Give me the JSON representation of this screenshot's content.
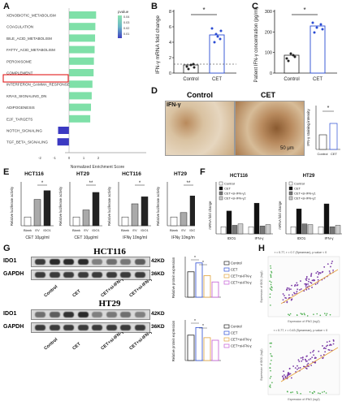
{
  "panels": {
    "A": {
      "label": "A",
      "legend_title": "pvalue",
      "legend_ticks": [
        "0.04",
        "0.03",
        "0.02",
        "0.01"
      ],
      "xlabel": "Normalized Enrichment Score",
      "xticks": [
        "-2",
        "-1",
        "0",
        "1",
        "2"
      ],
      "highlight": "INTERFERON_GAMMA_RESPONSE"
    },
    "B": {
      "label": "B",
      "ylabel": "IFN-γ mRNA fold change",
      "sig": "*",
      "categories": [
        "Control",
        "CET"
      ],
      "yticks": [
        "0",
        "2",
        "4",
        "6",
        "8"
      ]
    },
    "C": {
      "label": "C",
      "ylabel": "Patient IFN-γ concentration (pg/ml)",
      "sig": "*",
      "categories": [
        "Control",
        "CET"
      ],
      "yticks": [
        "0",
        "100",
        "200",
        "300"
      ]
    },
    "D": {
      "label": "D",
      "title_control": "Control",
      "title_cet": "CET",
      "ifn_label": "IFN-γ",
      "scale": "50 μm",
      "ylabel": "IFN-γ staining intensity",
      "sig": "*",
      "categories": [
        "Control",
        "CET"
      ]
    },
    "E": {
      "label": "E",
      "groups": [
        {
          "title": "HCT116",
          "xlabel": "CET 10μg/ml",
          "ylabel": "Relative luciferase activity",
          "cats": [
            "Blank",
            "EV",
            "IDO1"
          ],
          "sig": "*"
        },
        {
          "title": "HT29",
          "xlabel": "CET 10μg/ml",
          "ylabel": "Relative luciferase activity",
          "cats": [
            "Blank",
            "EV",
            "IDO1"
          ],
          "sig": "**"
        },
        {
          "title": "HCT116",
          "xlabel": "IFNγ 10ng/ml",
          "ylabel": "Relative luciferase activity",
          "cats": [
            "Blank",
            "EV",
            "IDO1"
          ],
          "sig": "*"
        },
        {
          "title": "HT29",
          "xlabel": "IFNγ 10ng/ml",
          "ylabel": "Relative luciferase activity",
          "cats": [
            "Blank",
            "EV",
            "IDO1"
          ],
          "sig": "**"
        }
      ]
    },
    "F": {
      "label": "F",
      "ylabel": "mRNA fold change",
      "legend": [
        "Control",
        "CET",
        "CET+si-IFN-γ1",
        "CET+si-IFN-γ2"
      ],
      "subtitles": [
        "HCT116",
        "HT29"
      ],
      "xcats": [
        "IDO1",
        "IFN-γ"
      ]
    },
    "G": {
      "label": "G",
      "blot1_title": "HCT116",
      "blot2_title": "HT29",
      "row1": "IDO1",
      "row2": "GAPDH",
      "kda1": "42KD",
      "kda2": "36KD",
      "lanes": [
        "Control",
        "CET",
        "CET+si-IFN-γ1",
        "CET+si-IFN-γ2"
      ],
      "bar_ylabel": "Relative protein expression",
      "legend": [
        "Control",
        "CET",
        "CET+si-IFN-γ1",
        "CET+si-IFN-γ2"
      ]
    },
    "H": {
      "label": "H",
      "stat1": "r = 0.77, r = 0.7 (Spearman), p.value < 0",
      "stat2": "r = 0.77, r = 0.43 (Spearman), p.value < 0",
      "xlabel": "Expression of IFNG (log2)",
      "ylabel": "Expression of IDO1 (log2)"
    }
  },
  "chart_data": [
    {
      "type": "bar",
      "title": "",
      "categories": [
        "XENOBIOTIC_METABOLISM",
        "COAGULATION",
        "BILE_ACID_METABOLISM",
        "FATTY_ACID_METABOLISM",
        "PEROXISOME",
        "COMPLEMENT",
        "INTERFERON_GAMMA_RESPONSE",
        "KRAS_SIGNALING_DN",
        "ADIPOGENESIS",
        "E2F_TARGETS",
        "NOTCH_SIGNALING",
        "TGF_BETA_SIGNALING"
      ],
      "values": [
        1.85,
        1.8,
        1.78,
        1.75,
        1.7,
        1.68,
        1.6,
        1.55,
        1.5,
        1.45,
        -0.75,
        -0.8
      ],
      "xlabel": "Normalized Enrichment Score",
      "ylim": [
        -2,
        2
      ]
    },
    {
      "type": "bar",
      "title": "",
      "categories": [
        "Control",
        "CET"
      ],
      "values": [
        1.0,
        4.8
      ],
      "ylabel": "IFN-γ mRNA fold change",
      "ylim": [
        0,
        8
      ]
    },
    {
      "type": "bar",
      "title": "",
      "categories": [
        "Control",
        "CET"
      ],
      "values": [
        85,
        225
      ],
      "ylabel": "Patient IFN-γ concentration (pg/ml)",
      "ylim": [
        0,
        300
      ]
    },
    {
      "type": "bar",
      "title": "",
      "categories": [
        "Control",
        "CET"
      ],
      "values": [
        0.06,
        0.12
      ],
      "ylabel": "IFN-γ staining intensity",
      "ylim": [
        0,
        0.2
      ]
    }
  ]
}
